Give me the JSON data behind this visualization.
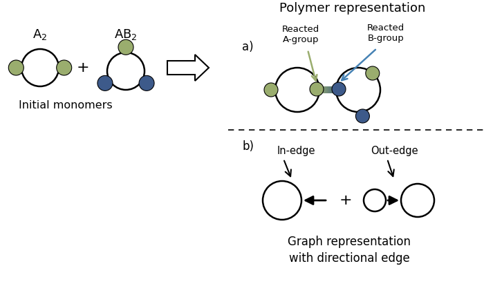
{
  "title": "Polymer representation",
  "label_initial": "Initial monomers",
  "label_graph": "Graph representation\nwith directional edge",
  "label_reacted_a": "Reacted\nA-group",
  "label_reacted_b": "Reacted\nB-group",
  "label_in_edge": "In-edge",
  "label_out_edge": "Out-edge",
  "color_green": "#9aad6e",
  "color_blue": "#3d5a8a",
  "color_white": "white",
  "color_black": "black",
  "bg_color": "white",
  "lw_main": 1.8,
  "lw_thin": 1.2
}
